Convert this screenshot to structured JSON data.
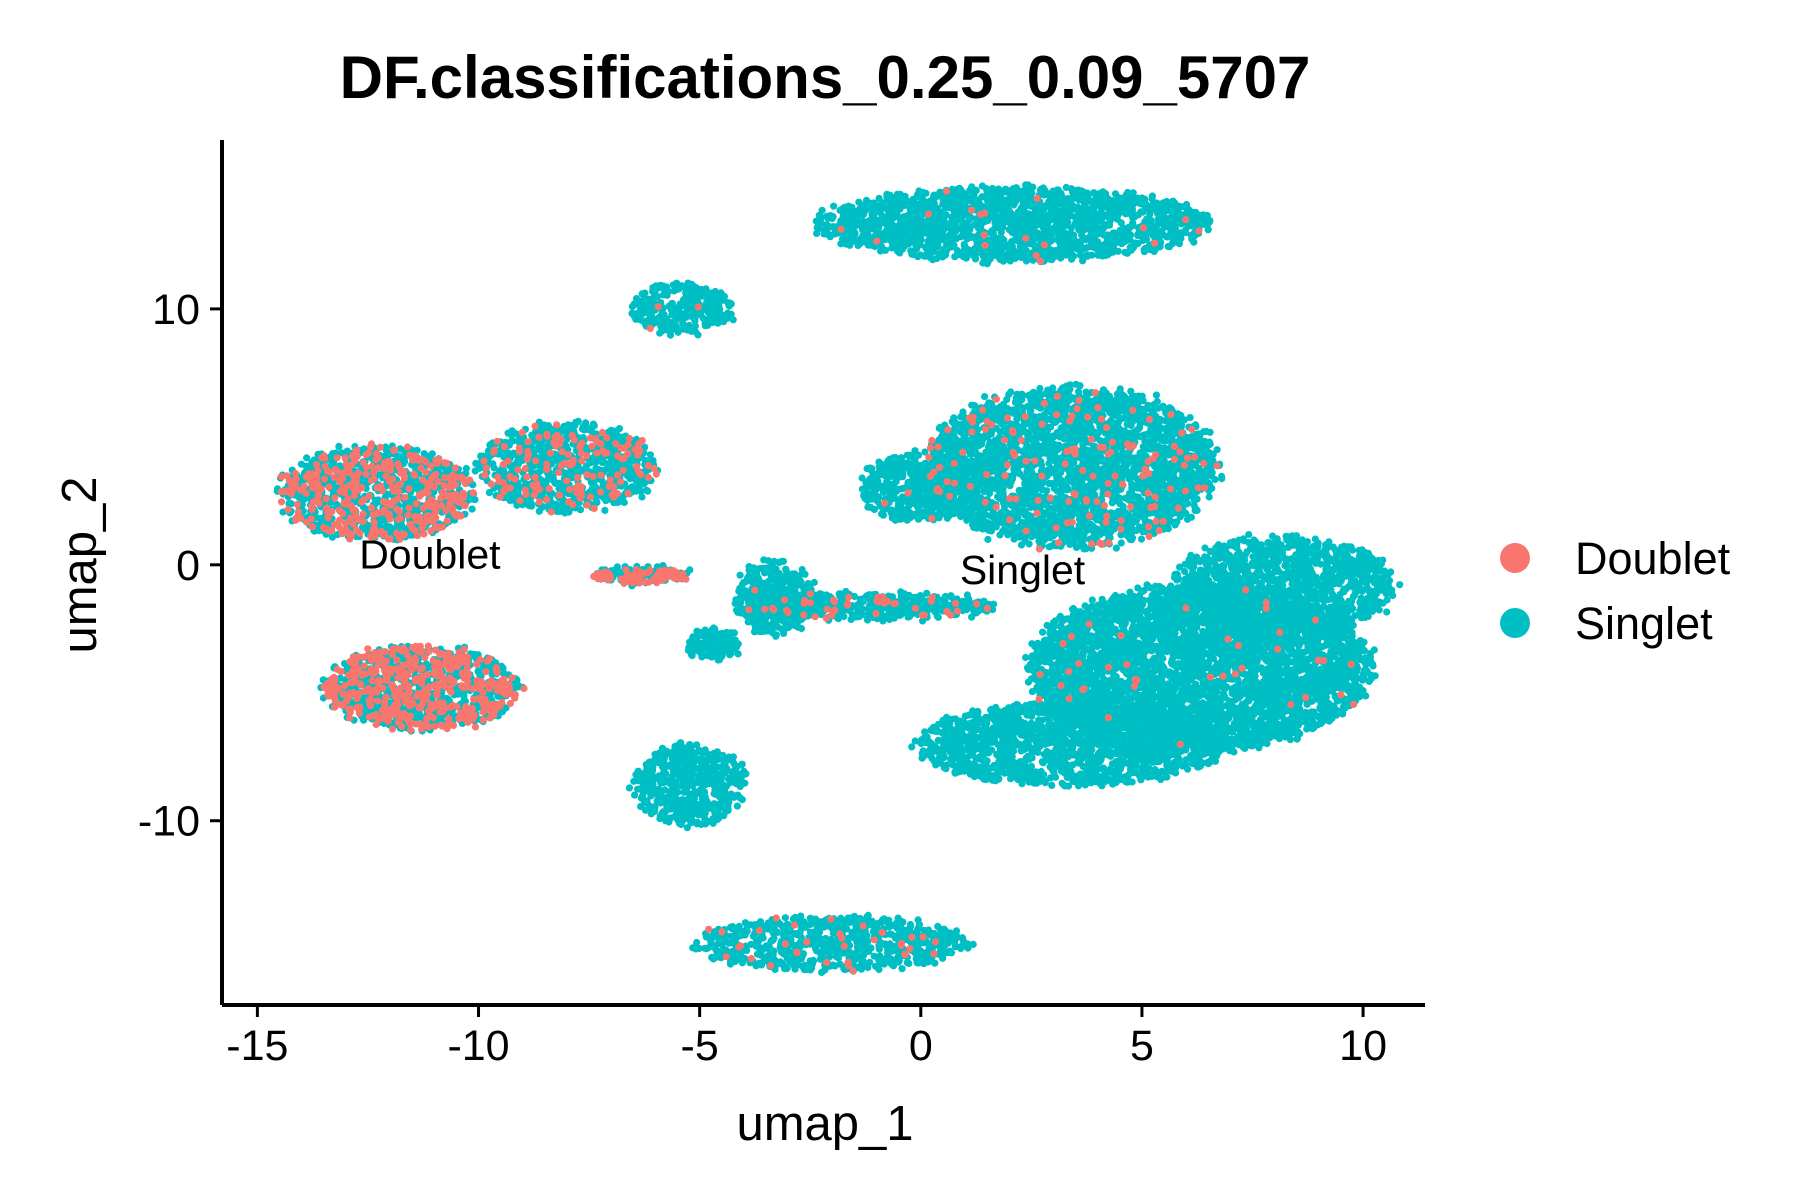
{
  "chart_data": {
    "type": "scatter",
    "title": "DF.classifications_0.25_0.09_5707",
    "xlabel": "umap_1",
    "ylabel": "umap_2",
    "xlim": [
      -15.8,
      11.4
    ],
    "ylim": [
      -17.2,
      16.6
    ],
    "x_ticks": [
      -15,
      -10,
      -5,
      0,
      5,
      10
    ],
    "x_tick_labels": [
      "-15",
      "-10",
      "-5",
      "0",
      "5",
      "10"
    ],
    "y_ticks": [
      -10,
      0,
      10
    ],
    "y_tick_labels": [
      "-10",
      "0",
      "10"
    ],
    "grid": false,
    "legend_position": "right",
    "series": [
      {
        "name": "Doublet",
        "color": "#F8766D"
      },
      {
        "name": "Singlet",
        "color": "#00BFC4"
      }
    ],
    "cluster_labels": [
      {
        "text": "Doublet",
        "x": -11.1,
        "y": 0.4
      },
      {
        "text": "Singlet",
        "x": 2.3,
        "y": -0.2
      }
    ],
    "clusters": [
      {
        "name": "top-center",
        "cx": 2.1,
        "cy": 13.3,
        "rx": 4.6,
        "ry": 1.5,
        "n": 1800,
        "doublet_fraction": 0.01
      },
      {
        "name": "small-top",
        "cx": -5.4,
        "cy": 10.0,
        "rx": 1.2,
        "ry": 1.0,
        "n": 300,
        "doublet_fraction": 0.02
      },
      {
        "name": "left-upper-a",
        "cx": -12.3,
        "cy": 2.8,
        "rx": 2.3,
        "ry": 1.9,
        "n": 1100,
        "doublet_fraction": 0.3
      },
      {
        "name": "left-upper-b",
        "cx": -8.0,
        "cy": 3.8,
        "rx": 2.1,
        "ry": 1.8,
        "n": 900,
        "doublet_fraction": 0.14
      },
      {
        "name": "left-lower",
        "cx": -11.3,
        "cy": -4.8,
        "rx": 2.3,
        "ry": 1.7,
        "n": 1100,
        "doublet_fraction": 0.36
      },
      {
        "name": "mid-lower",
        "cx": -5.2,
        "cy": -8.6,
        "rx": 1.3,
        "ry": 1.7,
        "n": 500,
        "doublet_fraction": 0.0
      },
      {
        "name": "bottom",
        "cx": -2.0,
        "cy": -14.8,
        "rx": 3.2,
        "ry": 1.1,
        "n": 700,
        "doublet_fraction": 0.04
      },
      {
        "name": "right-upper",
        "cx": 3.4,
        "cy": 3.8,
        "rx": 3.4,
        "ry": 3.3,
        "n": 2800,
        "doublet_fraction": 0.05
      },
      {
        "name": "right-upper-arm",
        "cx": 0.0,
        "cy": 3.0,
        "rx": 1.4,
        "ry": 1.4,
        "n": 500,
        "doublet_fraction": 0.01
      },
      {
        "name": "right-big",
        "cx": 6.3,
        "cy": -4.0,
        "rx": 4.0,
        "ry": 3.4,
        "n": 4200,
        "doublet_fraction": 0.01
      },
      {
        "name": "right-big-ext",
        "cx": 8.2,
        "cy": -0.8,
        "rx": 2.6,
        "ry": 2.0,
        "n": 1200,
        "doublet_fraction": 0.0
      },
      {
        "name": "right-big-low",
        "cx": 3.4,
        "cy": -7.0,
        "rx": 3.6,
        "ry": 1.7,
        "n": 1500,
        "doublet_fraction": 0.0
      },
      {
        "name": "bridge",
        "cx": -1.2,
        "cy": -1.6,
        "rx": 3.0,
        "ry": 0.5,
        "n": 500,
        "doublet_fraction": 0.08
      },
      {
        "name": "bridge-left",
        "cx": -6.3,
        "cy": -0.4,
        "rx": 1.1,
        "ry": 0.3,
        "n": 200,
        "doublet_fraction": 0.3
      },
      {
        "name": "mid-small",
        "cx": -4.7,
        "cy": -3.1,
        "rx": 0.6,
        "ry": 0.6,
        "n": 150,
        "doublet_fraction": 0.0
      },
      {
        "name": "mid-arc",
        "cx": -3.3,
        "cy": -1.3,
        "rx": 0.9,
        "ry": 1.5,
        "n": 350,
        "doublet_fraction": 0.01
      }
    ]
  }
}
